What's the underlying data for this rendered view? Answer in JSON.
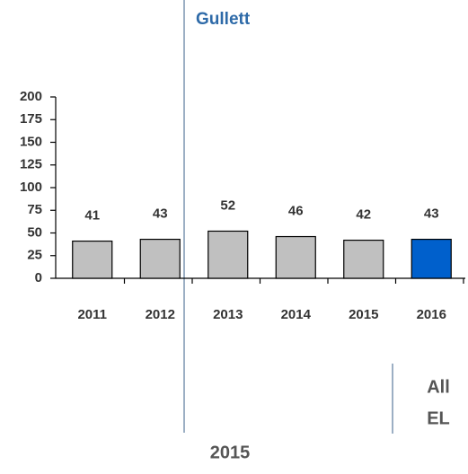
{
  "chart_data": {
    "type": "bar",
    "title": "Gullett",
    "categories": [
      "2011",
      "2012",
      "2013",
      "2014",
      "2015",
      "2016"
    ],
    "values": [
      41,
      43,
      52,
      46,
      42,
      43
    ],
    "colors": [
      "#c0c0c0",
      "#c0c0c0",
      "#c0c0c0",
      "#c0c0c0",
      "#c0c0c0",
      "#0060cc"
    ],
    "ylim": [
      0,
      200
    ],
    "yticks": [
      0,
      25,
      50,
      75,
      100,
      125,
      150,
      175,
      200
    ],
    "grid": false,
    "annotations": [
      "All",
      "EL",
      "2015"
    ]
  }
}
